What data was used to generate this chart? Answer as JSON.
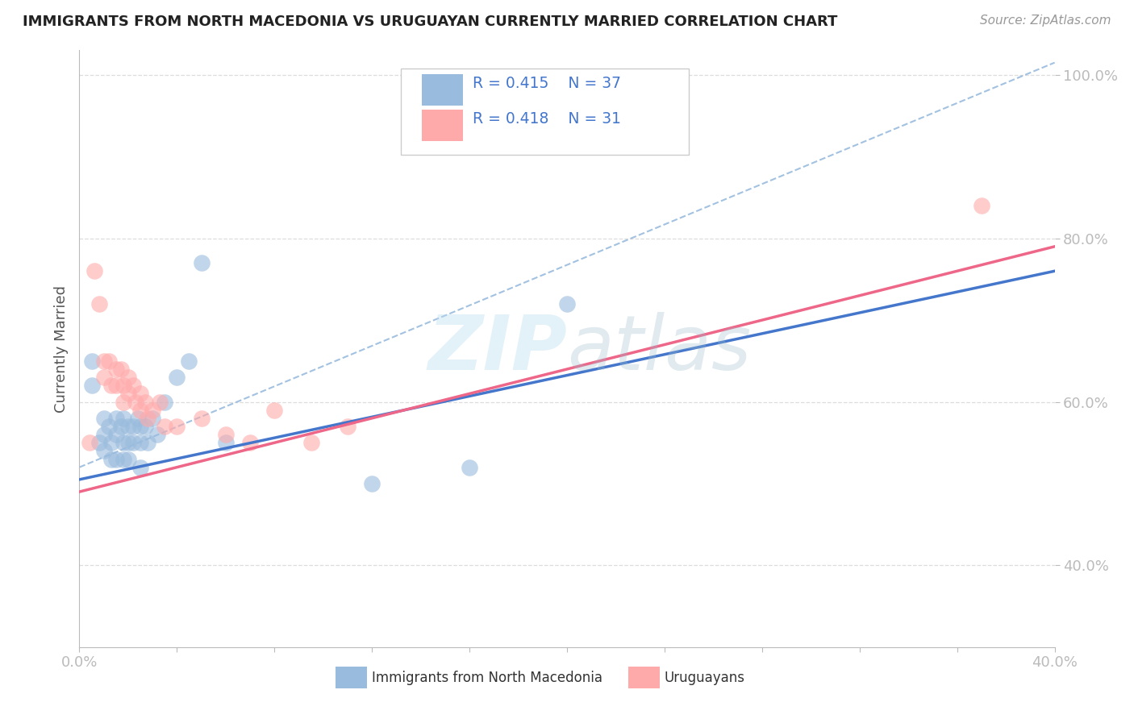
{
  "title": "IMMIGRANTS FROM NORTH MACEDONIA VS URUGUAYAN CURRENTLY MARRIED CORRELATION CHART",
  "source": "Source: ZipAtlas.com",
  "ylabel": "Currently Married",
  "xlim": [
    0.0,
    0.4
  ],
  "ylim": [
    0.3,
    1.03
  ],
  "xticks": [
    0.0,
    0.04,
    0.08,
    0.12,
    0.16,
    0.2,
    0.24,
    0.28,
    0.32,
    0.36,
    0.4
  ],
  "yticks": [
    0.4,
    0.6,
    0.8,
    1.0
  ],
  "legend_r1": "R = 0.415",
  "legend_n1": "N = 37",
  "legend_r2": "R = 0.418",
  "legend_n2": "N = 31",
  "blue_color": "#99BBDD",
  "pink_color": "#FFAAAA",
  "blue_line_color": "#4477CC",
  "pink_line_color": "#EE6688",
  "legend_text_color": "#4477CC",
  "watermark_color": "#AACCEE",
  "ytick_color": "#4477CC",
  "background_color": "#FFFFFF",
  "blue_scatter_x": [
    0.005,
    0.005,
    0.008,
    0.01,
    0.01,
    0.01,
    0.012,
    0.013,
    0.013,
    0.015,
    0.015,
    0.015,
    0.017,
    0.018,
    0.018,
    0.018,
    0.02,
    0.02,
    0.02,
    0.022,
    0.022,
    0.024,
    0.025,
    0.025,
    0.025,
    0.027,
    0.028,
    0.03,
    0.032,
    0.035,
    0.04,
    0.045,
    0.05,
    0.06,
    0.12,
    0.16,
    0.2
  ],
  "blue_scatter_y": [
    0.65,
    0.62,
    0.55,
    0.58,
    0.56,
    0.54,
    0.57,
    0.55,
    0.53,
    0.58,
    0.56,
    0.53,
    0.57,
    0.58,
    0.55,
    0.53,
    0.57,
    0.55,
    0.53,
    0.57,
    0.55,
    0.58,
    0.57,
    0.55,
    0.52,
    0.57,
    0.55,
    0.58,
    0.56,
    0.6,
    0.63,
    0.65,
    0.77,
    0.55,
    0.5,
    0.52,
    0.72
  ],
  "pink_scatter_x": [
    0.004,
    0.006,
    0.008,
    0.01,
    0.01,
    0.012,
    0.013,
    0.015,
    0.015,
    0.017,
    0.018,
    0.018,
    0.02,
    0.02,
    0.022,
    0.023,
    0.025,
    0.025,
    0.027,
    0.028,
    0.03,
    0.033,
    0.035,
    0.04,
    0.05,
    0.06,
    0.07,
    0.08,
    0.095,
    0.11,
    0.37
  ],
  "pink_scatter_y": [
    0.55,
    0.76,
    0.72,
    0.65,
    0.63,
    0.65,
    0.62,
    0.64,
    0.62,
    0.64,
    0.62,
    0.6,
    0.63,
    0.61,
    0.62,
    0.6,
    0.61,
    0.59,
    0.6,
    0.58,
    0.59,
    0.6,
    0.57,
    0.57,
    0.58,
    0.56,
    0.55,
    0.59,
    0.55,
    0.57,
    0.84
  ],
  "blue_line_x": [
    0.0,
    0.4
  ],
  "blue_line_y": [
    0.505,
    0.76
  ],
  "pink_line_x": [
    0.0,
    0.4
  ],
  "pink_line_y": [
    0.49,
    0.79
  ],
  "diag_line_x": [
    0.0,
    0.4
  ],
  "diag_line_y": [
    0.52,
    1.015
  ]
}
